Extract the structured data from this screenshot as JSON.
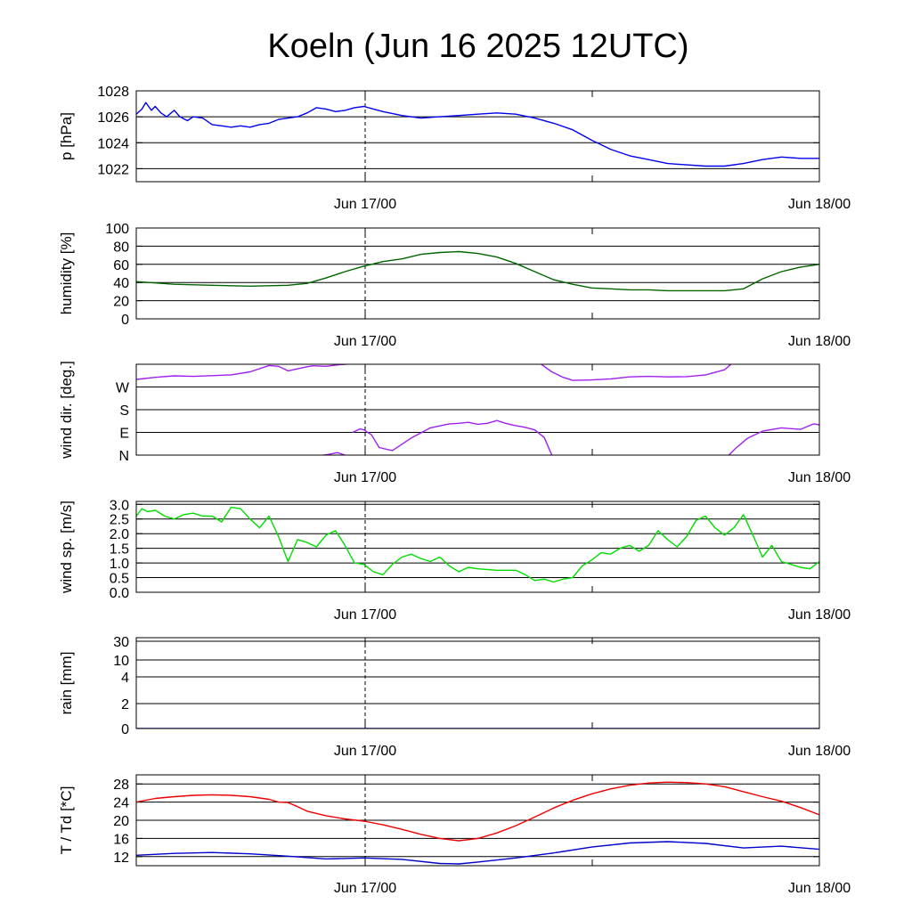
{
  "title": "Koeln (Jun 16 2025 12UTC)",
  "chart_data": [
    {
      "type": "line",
      "ylabel": "p [hPa]",
      "x_labels": [
        "Jun 17/00",
        "Jun 18/00"
      ],
      "x_range_hours": [
        0,
        36
      ],
      "ylim": [
        1021,
        1028
      ],
      "y_ticks": [
        {
          "v": 1028,
          "label": "1028"
        },
        {
          "v": 1026,
          "label": "1026"
        },
        {
          "v": 1024,
          "label": "1024"
        },
        {
          "v": 1022,
          "label": "1022"
        }
      ],
      "series": [
        {
          "color": "#0000ee",
          "x": [
            0,
            0.3,
            0.5,
            0.8,
            1,
            1.3,
            1.6,
            2,
            2.3,
            2.7,
            3,
            3.5,
            4,
            4.5,
            5,
            5.5,
            6,
            6.5,
            7,
            7.5,
            8,
            8.5,
            9,
            9.5,
            10,
            10.5,
            11,
            11.5,
            12,
            12.5,
            13,
            14,
            15,
            16,
            17,
            18,
            19,
            20,
            21,
            22,
            23,
            24,
            25,
            26,
            27,
            28,
            29,
            30,
            31,
            32,
            33,
            34,
            35,
            36
          ],
          "y": [
            1026.2,
            1026.6,
            1027.1,
            1026.5,
            1026.8,
            1026.3,
            1026.0,
            1026.5,
            1026.0,
            1025.7,
            1026.0,
            1025.9,
            1025.4,
            1025.3,
            1025.2,
            1025.3,
            1025.2,
            1025.4,
            1025.5,
            1025.8,
            1025.9,
            1026.0,
            1026.3,
            1026.7,
            1026.6,
            1026.4,
            1026.5,
            1026.7,
            1026.8,
            1026.6,
            1026.4,
            1026.1,
            1025.9,
            1026.0,
            1026.1,
            1026.2,
            1026.3,
            1026.2,
            1025.9,
            1025.5,
            1025.0,
            1024.2,
            1023.5,
            1023.0,
            1022.7,
            1022.4,
            1022.3,
            1022.2,
            1022.2,
            1022.4,
            1022.7,
            1022.9,
            1022.8,
            1022.8
          ]
        }
      ]
    },
    {
      "type": "line",
      "ylabel": "humidity [%]",
      "x_labels": [
        "Jun 17/00",
        "Jun 18/00"
      ],
      "x_range_hours": [
        0,
        36
      ],
      "ylim": [
        0,
        100
      ],
      "y_ticks": [
        {
          "v": 100,
          "label": "100"
        },
        {
          "v": 80,
          "label": "80"
        },
        {
          "v": 60,
          "label": "60"
        },
        {
          "v": 40,
          "label": "40"
        },
        {
          "v": 20,
          "label": "20"
        },
        {
          "v": 0,
          "label": "0"
        }
      ],
      "series": [
        {
          "color": "#006400",
          "x": [
            0,
            2,
            4,
            6,
            8,
            9,
            10,
            11,
            12,
            13,
            14,
            15,
            16,
            17,
            18,
            19,
            20,
            21,
            22,
            23,
            24,
            25,
            26,
            27,
            28,
            29,
            30,
            31,
            32,
            33,
            34,
            35,
            36
          ],
          "y": [
            41,
            38,
            37,
            36,
            37,
            39,
            45,
            52,
            58,
            63,
            66,
            71,
            73,
            74,
            72,
            68,
            61,
            52,
            43,
            38,
            34,
            33,
            32,
            32,
            31,
            31,
            31,
            31,
            33,
            44,
            52,
            57,
            60
          ]
        }
      ]
    },
    {
      "type": "line",
      "ylabel": "wind dir. [deg.]",
      "x_labels": [
        "Jun 17/00",
        "Jun 18/00"
      ],
      "x_range_hours": [
        0,
        36
      ],
      "ylim": [
        0,
        360
      ],
      "y_ticks": [
        {
          "v": 270,
          "label": "W"
        },
        {
          "v": 180,
          "label": "S"
        },
        {
          "v": 90,
          "label": "E"
        },
        {
          "v": 0,
          "label": "N"
        }
      ],
      "series": [
        {
          "color": "#a020f0",
          "x": [
            0,
            1,
            2,
            3,
            4,
            5,
            6,
            7,
            7.5,
            8,
            9,
            9.3,
            10,
            10.5,
            11,
            11.4
          ],
          "y": [
            300,
            308,
            314,
            312,
            315,
            318,
            330,
            355,
            352,
            334,
            350,
            354,
            352,
            357,
            360,
            362
          ]
        },
        {
          "color": "#a020f0",
          "x": [
            9.7,
            10.2,
            10.6,
            11.0
          ],
          "y": [
            -2,
            4,
            10,
            0
          ]
        },
        {
          "color": "#a020f0",
          "x": [
            11.4,
            11.8,
            12,
            12.4,
            12.8,
            13.5,
            14.5,
            15.5,
            16.5,
            17,
            17.5,
            18,
            18.5,
            19,
            19.5,
            20,
            20.5,
            21,
            21.5,
            21.9
          ],
          "y": [
            90,
            104,
            100,
            80,
            30,
            18,
            68,
            108,
            124,
            126,
            130,
            122,
            126,
            137,
            125,
            117,
            110,
            100,
            70,
            0
          ]
        },
        {
          "color": "#a020f0",
          "x": [
            21.3,
            21.9,
            22.5,
            23,
            24,
            25,
            26,
            27,
            28,
            29,
            30,
            31,
            31.4
          ],
          "y": [
            362,
            330,
            308,
            296,
            298,
            302,
            310,
            312,
            310,
            311,
            318,
            338,
            364
          ]
        },
        {
          "color": "#a020f0",
          "x": [
            31.2,
            31.6,
            32.2,
            33,
            34,
            35,
            35.7,
            36
          ],
          "y": [
            -2,
            28,
            66,
            95,
            108,
            102,
            124,
            120
          ]
        }
      ]
    },
    {
      "type": "line",
      "ylabel": "wind sp. [m/s]",
      "x_labels": [
        "Jun 17/00",
        "Jun 18/00"
      ],
      "x_range_hours": [
        0,
        36
      ],
      "ylim": [
        0,
        3.1
      ],
      "y_ticks": [
        {
          "v": 3.0,
          "label": "3.0"
        },
        {
          "v": 2.5,
          "label": "2.5"
        },
        {
          "v": 2.0,
          "label": "2.0"
        },
        {
          "v": 1.5,
          "label": "1.5"
        },
        {
          "v": 1.0,
          "label": "1.0"
        },
        {
          "v": 0.5,
          "label": "0.5"
        },
        {
          "v": 0.0,
          "label": "0.0"
        }
      ],
      "series": [
        {
          "color": "#00dd00",
          "x": [
            0,
            0.3,
            0.6,
            1,
            1.5,
            2,
            2.5,
            3,
            3.5,
            4,
            4.5,
            5,
            5.5,
            6,
            6.5,
            7,
            7.5,
            8,
            8.5,
            9,
            9.5,
            10,
            10.5,
            11,
            11.5,
            12,
            12.5,
            13,
            13.5,
            14,
            14.5,
            15,
            15.5,
            16,
            16.5,
            17,
            17.5,
            18,
            19,
            20,
            20.5,
            21,
            21.5,
            22,
            22.5,
            23,
            23.5,
            24,
            24.5,
            25,
            25.5,
            26,
            26.5,
            27,
            27.5,
            28,
            28.5,
            29,
            29.5,
            30,
            30.5,
            31,
            31.5,
            32,
            32.5,
            33,
            33.5,
            34,
            34.5,
            35,
            35.5,
            36
          ],
          "y": [
            2.6,
            2.85,
            2.75,
            2.8,
            2.6,
            2.5,
            2.65,
            2.7,
            2.6,
            2.6,
            2.4,
            2.9,
            2.85,
            2.5,
            2.2,
            2.6,
            1.9,
            1.05,
            1.8,
            1.7,
            1.55,
            1.95,
            2.1,
            1.6,
            1.0,
            0.95,
            0.7,
            0.6,
            0.95,
            1.2,
            1.3,
            1.15,
            1.05,
            1.2,
            0.9,
            0.7,
            0.85,
            0.8,
            0.75,
            0.75,
            0.6,
            0.4,
            0.45,
            0.35,
            0.45,
            0.5,
            0.9,
            1.1,
            1.35,
            1.3,
            1.5,
            1.6,
            1.4,
            1.6,
            2.1,
            1.8,
            1.55,
            1.9,
            2.45,
            2.6,
            2.2,
            1.95,
            2.2,
            2.65,
            1.95,
            1.2,
            1.6,
            1.05,
            0.95,
            0.85,
            0.8,
            1.05
          ]
        }
      ]
    },
    {
      "type": "line",
      "ylabel": "rain [mm]",
      "x_labels": [
        "Jun 17/00",
        "Jun 18/00"
      ],
      "x_range_hours": [
        0,
        36
      ],
      "y_scale": "nonlinear",
      "y_ticks": [
        {
          "v": 30,
          "label": "30"
        },
        {
          "v": 10,
          "label": "10"
        },
        {
          "v": 4,
          "label": "4"
        },
        {
          "v": 2,
          "label": "2"
        },
        {
          "v": 0,
          "label": "0"
        }
      ],
      "series": [
        {
          "color": "#0000ee",
          "x": [
            0,
            36
          ],
          "y": [
            0,
            0
          ]
        }
      ]
    },
    {
      "type": "line",
      "ylabel": "T / Td [*C]",
      "x_labels": [
        "Jun 17/00",
        "Jun 18/00"
      ],
      "x_range_hours": [
        0,
        36
      ],
      "ylim": [
        10,
        30
      ],
      "y_ticks": [
        {
          "v": 28,
          "label": "28"
        },
        {
          "v": 24,
          "label": "24"
        },
        {
          "v": 20,
          "label": "20"
        },
        {
          "v": 16,
          "label": "16"
        },
        {
          "v": 12,
          "label": "12"
        }
      ],
      "series": [
        {
          "color": "#ee0000",
          "x": [
            0,
            1,
            2,
            3,
            4,
            5,
            6,
            7,
            7.5,
            8,
            8.5,
            9,
            10,
            11,
            12,
            13,
            14,
            15,
            16,
            17,
            18,
            19,
            20,
            21,
            22,
            23,
            24,
            25,
            26,
            27,
            28,
            29,
            30,
            31,
            32,
            33,
            34,
            35,
            36
          ],
          "y": [
            24,
            24.8,
            25.2,
            25.5,
            25.6,
            25.5,
            25.2,
            24.6,
            24,
            23.9,
            23,
            22,
            21,
            20.3,
            19.8,
            19,
            18,
            16.9,
            16,
            15.5,
            16,
            17.2,
            18.8,
            20.7,
            22.7,
            24.4,
            25.8,
            26.9,
            27.7,
            28.2,
            28.4,
            28.3,
            28,
            27.4,
            26.3,
            25.2,
            24.2,
            22.8,
            21.2
          ]
        },
        {
          "color": "#0000cc",
          "x": [
            0,
            2,
            4,
            6,
            8,
            10,
            12,
            14,
            16,
            17,
            18,
            20,
            22,
            24,
            26,
            28,
            30,
            32,
            34,
            36
          ],
          "y": [
            12.3,
            12.7,
            12.9,
            12.6,
            12.1,
            11.5,
            11.7,
            11.4,
            10.5,
            10.4,
            10.8,
            11.7,
            12.8,
            14.1,
            15,
            15.3,
            14.9,
            13.9,
            14.3,
            13.6
          ]
        }
      ]
    }
  ]
}
